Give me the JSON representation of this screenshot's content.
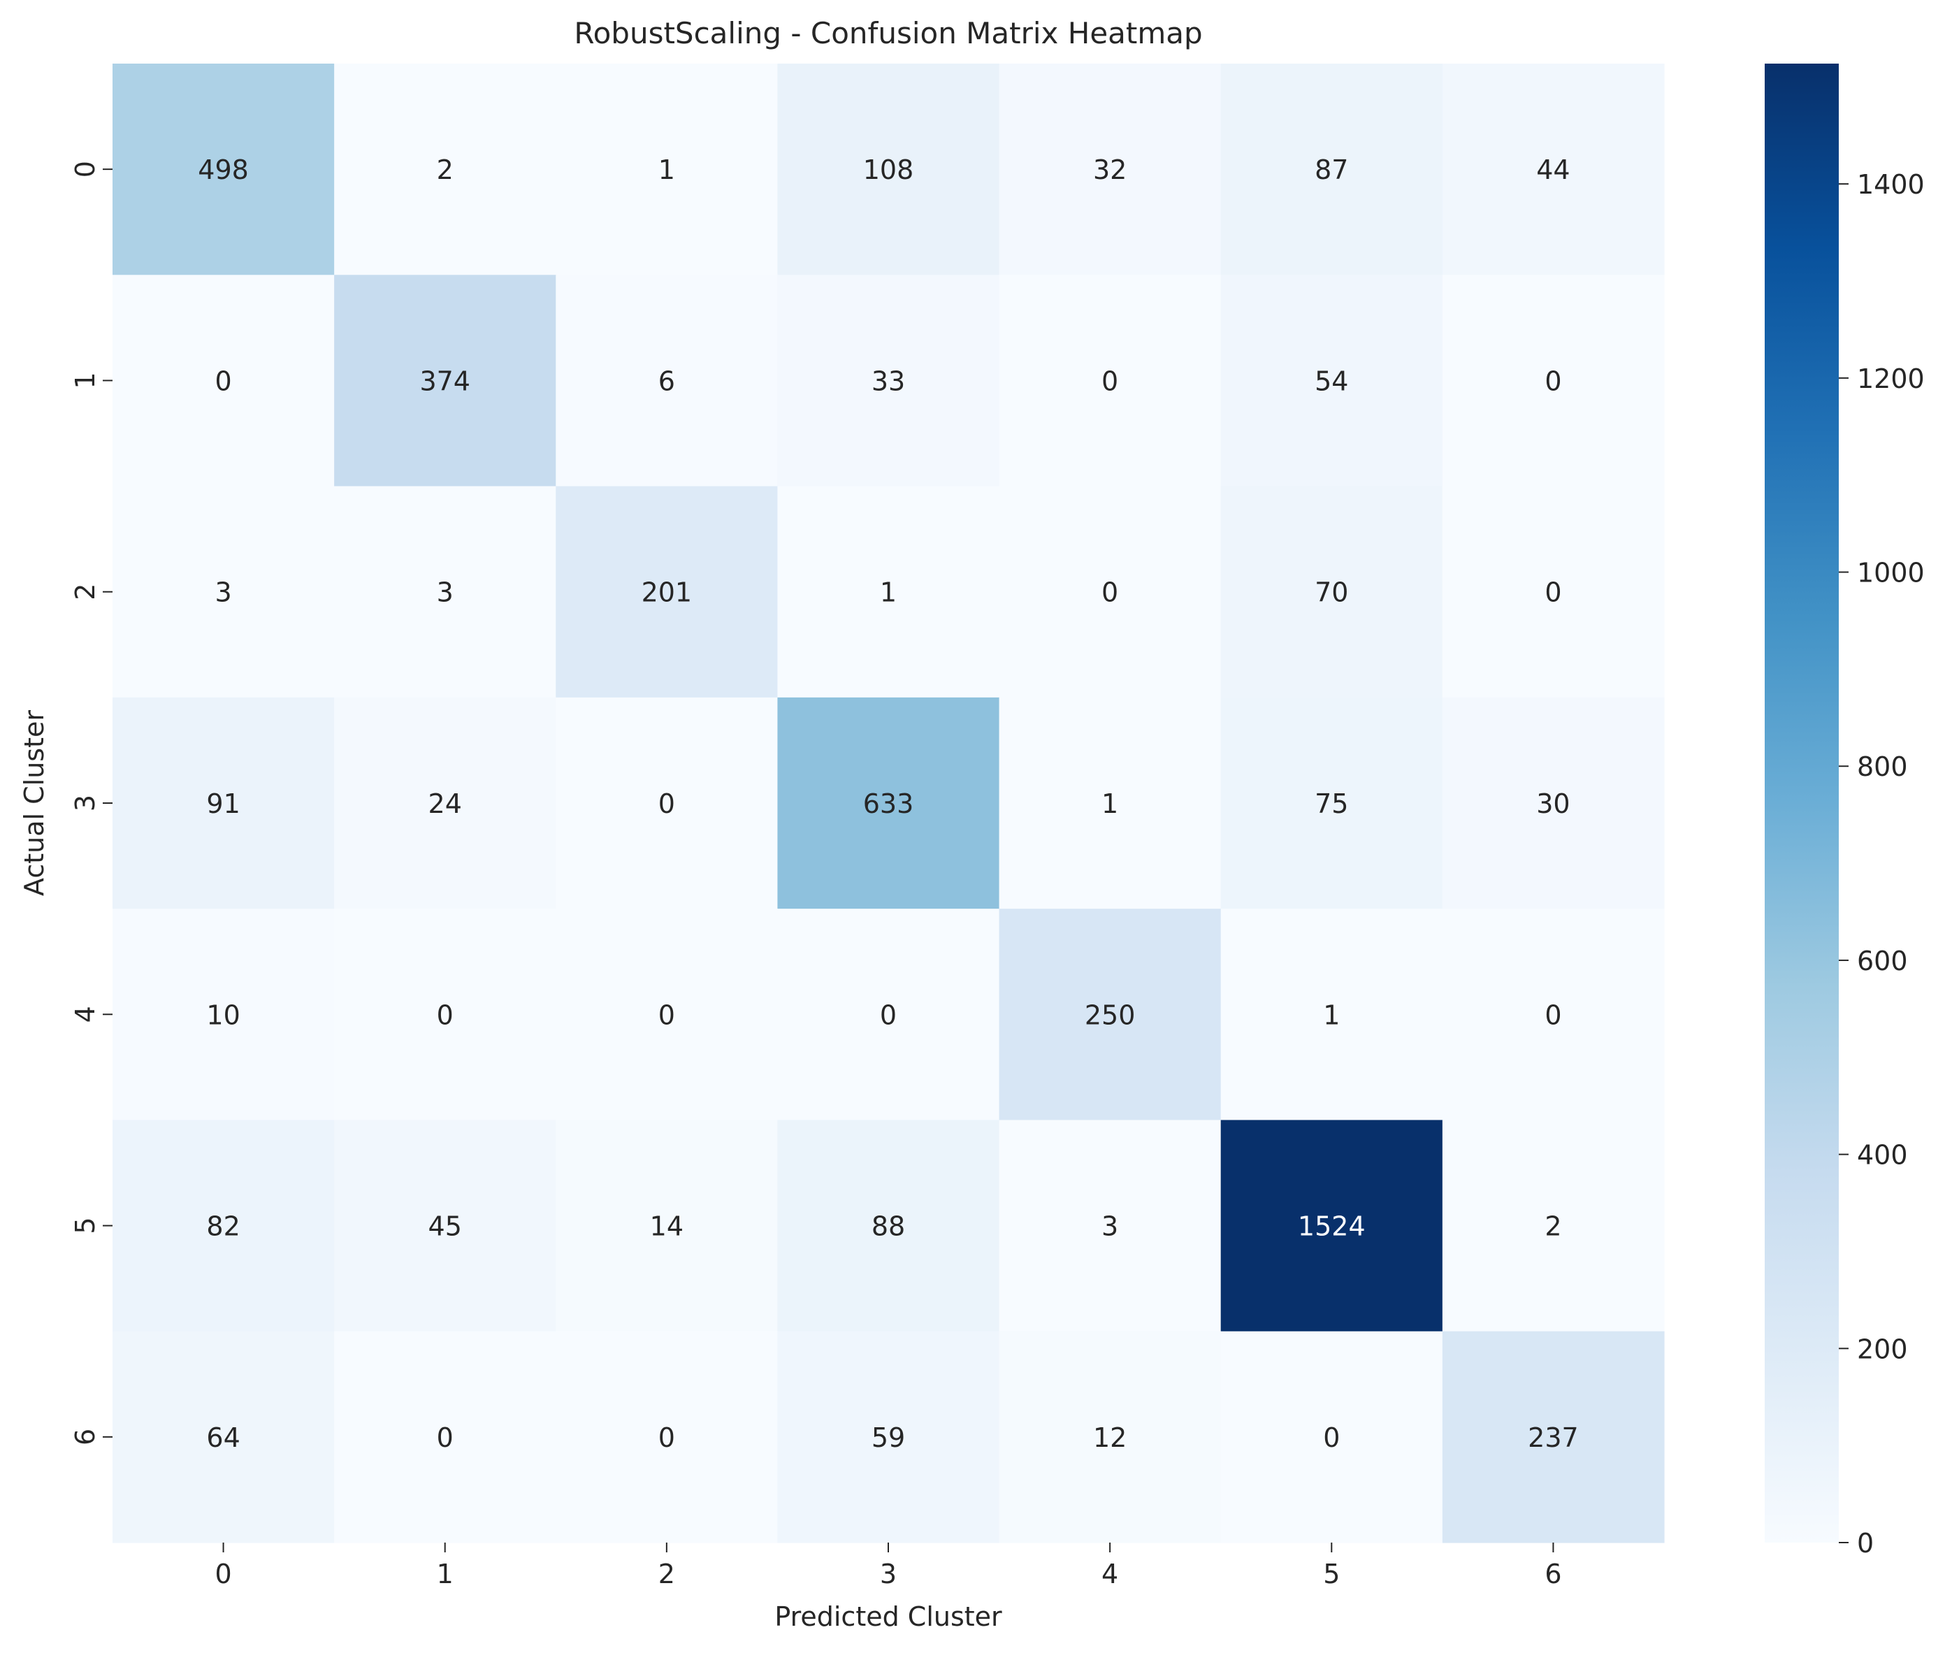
{
  "chart_data": {
    "type": "heatmap",
    "title": "RobustScaling - Confusion Matrix Heatmap",
    "xlabel": "Predicted Cluster",
    "ylabel": "Actual Cluster",
    "x_categories": [
      "0",
      "1",
      "2",
      "3",
      "4",
      "5",
      "6"
    ],
    "y_categories": [
      "0",
      "1",
      "2",
      "3",
      "4",
      "5",
      "6"
    ],
    "values": [
      [
        498,
        2,
        1,
        108,
        32,
        87,
        44
      ],
      [
        0,
        374,
        6,
        33,
        0,
        54,
        0
      ],
      [
        3,
        3,
        201,
        1,
        0,
        70,
        0
      ],
      [
        91,
        24,
        0,
        633,
        1,
        75,
        30
      ],
      [
        10,
        0,
        0,
        0,
        250,
        1,
        0
      ],
      [
        82,
        45,
        14,
        88,
        3,
        1524,
        2
      ],
      [
        64,
        0,
        0,
        59,
        12,
        0,
        237
      ]
    ],
    "colormap": "Blues",
    "vmin": 0,
    "vmax": 1524,
    "colorbar_ticks": [
      0,
      200,
      400,
      600,
      800,
      1000,
      1200,
      1400
    ],
    "annot_dark_color": "#262626",
    "annot_light_color": "#ffffff",
    "grid": false,
    "colorbar_position": "right"
  }
}
